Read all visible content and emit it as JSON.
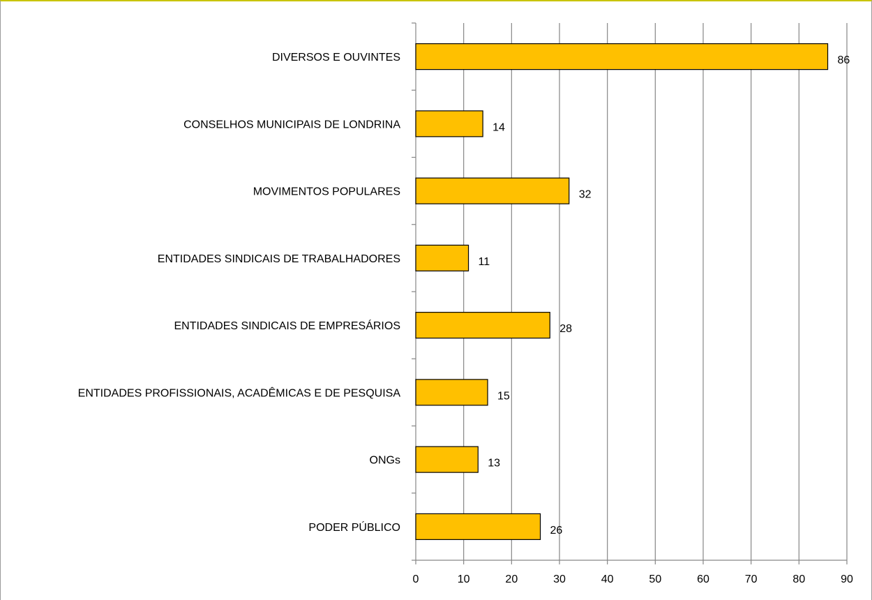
{
  "chart_data": {
    "type": "bar",
    "orientation": "horizontal",
    "title": "",
    "xlabel": "",
    "ylabel": "",
    "categories": [
      "DIVERSOS E OUVINTES",
      "CONSELHOS MUNICIPAIS DE LONDRINA",
      "MOVIMENTOS POPULARES",
      "ENTIDADES SINDICAIS DE TRABALHADORES",
      "ENTIDADES SINDICAIS DE EMPRESÁRIOS",
      "ENTIDADES PROFISSIONAIS, ACADÊMICAS E DE PESQUISA",
      "ONGs",
      "PODER PÚBLICO"
    ],
    "values": [
      86,
      14,
      32,
      11,
      28,
      15,
      13,
      26
    ],
    "data_labels": [
      "86",
      "14",
      "32",
      "11",
      "28",
      "15",
      "13",
      "26"
    ],
    "xlim": [
      0,
      90
    ],
    "x_ticks": [
      0,
      10,
      20,
      30,
      40,
      50,
      60,
      70,
      80,
      90
    ],
    "x_tick_labels": [
      "0",
      "10",
      "20",
      "30",
      "40",
      "50",
      "60",
      "70",
      "80",
      "90"
    ],
    "grid": "vertical",
    "legend": "none",
    "colors": {
      "bar_fill": "#FFC000",
      "bar_stroke": "#000000",
      "grid": "#868686",
      "axis": "#868686"
    }
  }
}
